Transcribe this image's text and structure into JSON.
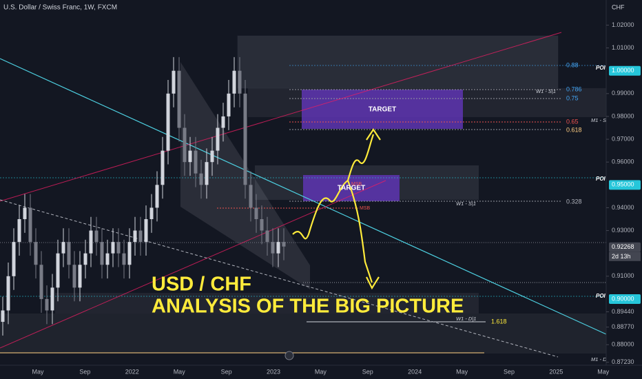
{
  "chart_data": {
    "type": "candlestick",
    "title": "U.S. Dollar / Swiss Franc, 1W, FXCM",
    "currency": "CHF",
    "ylim": [
      0.871,
      1.031
    ],
    "yticks": [
      {
        "value": 1.02,
        "label": "1.02000"
      },
      {
        "value": 1.01,
        "label": "1.01000"
      },
      {
        "value": 0.99,
        "label": "0.99000"
      },
      {
        "value": 0.98,
        "label": "0.98000"
      },
      {
        "value": 0.97,
        "label": "0.97000"
      },
      {
        "value": 0.96,
        "label": "0.96000"
      },
      {
        "value": 0.94,
        "label": "0.94000"
      },
      {
        "value": 0.93,
        "label": "0.93000"
      },
      {
        "value": 0.91,
        "label": "0.91000"
      },
      {
        "value": 0.8944,
        "label": "0.89440"
      },
      {
        "value": 0.8877,
        "label": "0.88770"
      },
      {
        "value": 0.88,
        "label": "0.88000"
      },
      {
        "value": 0.8723,
        "label": "0.87230"
      }
    ],
    "x_labels": [
      "May",
      "Sep",
      "2022",
      "May",
      "Sep",
      "2023",
      "May",
      "Sep",
      "2024",
      "May",
      "Sep",
      "2025",
      "May"
    ],
    "open": [
      0.89,
      0.895,
      0.91,
      0.925,
      0.935,
      0.94,
      0.925,
      0.915,
      0.9,
      0.895,
      0.905,
      0.92,
      0.925,
      0.915,
      0.905,
      0.915,
      0.92,
      0.93,
      0.925,
      0.915,
      0.92,
      0.925,
      0.92,
      0.915,
      0.925,
      0.93,
      0.925,
      0.935,
      0.94,
      0.95,
      0.965,
      0.99,
      1.0,
      0.975,
      0.96,
      0.965,
      0.955,
      0.95,
      0.96,
      0.965,
      0.975,
      0.98,
      0.99,
      1.0,
      0.99,
      0.95,
      0.94,
      0.935,
      0.93,
      0.925,
      0.92,
      0.925
    ],
    "close": [
      0.895,
      0.91,
      0.925,
      0.935,
      0.94,
      0.925,
      0.915,
      0.9,
      0.895,
      0.905,
      0.92,
      0.925,
      0.915,
      0.905,
      0.915,
      0.92,
      0.93,
      0.925,
      0.915,
      0.92,
      0.925,
      0.92,
      0.915,
      0.925,
      0.93,
      0.925,
      0.935,
      0.94,
      0.95,
      0.965,
      0.99,
      1.0,
      0.975,
      0.96,
      0.965,
      0.955,
      0.95,
      0.96,
      0.965,
      0.975,
      0.98,
      0.99,
      1.0,
      0.99,
      0.95,
      0.94,
      0.935,
      0.93,
      0.925,
      0.92,
      0.925,
      0.923
    ],
    "high": [
      0.901,
      0.916,
      0.931,
      0.941,
      0.946,
      0.946,
      0.931,
      0.921,
      0.906,
      0.911,
      0.926,
      0.931,
      0.931,
      0.921,
      0.921,
      0.926,
      0.936,
      0.936,
      0.931,
      0.926,
      0.931,
      0.931,
      0.926,
      0.931,
      0.936,
      0.936,
      0.941,
      0.946,
      0.956,
      0.971,
      0.996,
      1.006,
      1.006,
      0.981,
      0.971,
      0.971,
      0.961,
      0.966,
      0.971,
      0.981,
      0.986,
      0.996,
      1.006,
      1.006,
      0.996,
      0.956,
      0.946,
      0.941,
      0.936,
      0.931,
      0.931,
      0.931
    ],
    "low": [
      0.884,
      0.889,
      0.904,
      0.919,
      0.929,
      0.919,
      0.909,
      0.894,
      0.889,
      0.889,
      0.899,
      0.914,
      0.909,
      0.899,
      0.899,
      0.909,
      0.914,
      0.919,
      0.909,
      0.909,
      0.914,
      0.914,
      0.909,
      0.909,
      0.919,
      0.919,
      0.919,
      0.929,
      0.934,
      0.944,
      0.959,
      0.984,
      0.969,
      0.954,
      0.954,
      0.949,
      0.944,
      0.944,
      0.954,
      0.959,
      0.969,
      0.974,
      0.984,
      0.984,
      0.944,
      0.934,
      0.929,
      0.924,
      0.919,
      0.914,
      0.914,
      0.917
    ],
    "price_badges": [
      {
        "value": 1.0,
        "label": "1.00000",
        "color": "#26c6da"
      },
      {
        "value": 0.95,
        "label": "0.95000",
        "color": "#26c6da"
      },
      {
        "value": 0.92268,
        "label": "0.92268",
        "color": "#434651"
      },
      {
        "value": 0.9,
        "label": "0.90000",
        "color": "#26c6da"
      }
    ],
    "countdown": "2d 13h",
    "annotations": {
      "target_upper": "TARGET",
      "target_lower": "TARGET",
      "msb_upper": "MSB",
      "msb_lower": "MSB",
      "fib_088": "0.88",
      "fib_0786": "0.786",
      "fib_075": "0.75",
      "fib_065": "0.65",
      "fib_0618": "0.618",
      "fib_0328": "0.328",
      "fib_1618": "1.618",
      "w1_s1_upper": "W1 - S|1",
      "m1_s": "M1 - S",
      "w1_s1_lower": "W1 - S|1",
      "w1_d1": "W1 - D|1",
      "m1_d": "M1 - D",
      "poi": [
        "POI",
        "POI",
        "POI"
      ],
      "headline_1": "USD / CHF",
      "headline_2": "ANALYSIS OF THE BIG PICTURE"
    }
  }
}
